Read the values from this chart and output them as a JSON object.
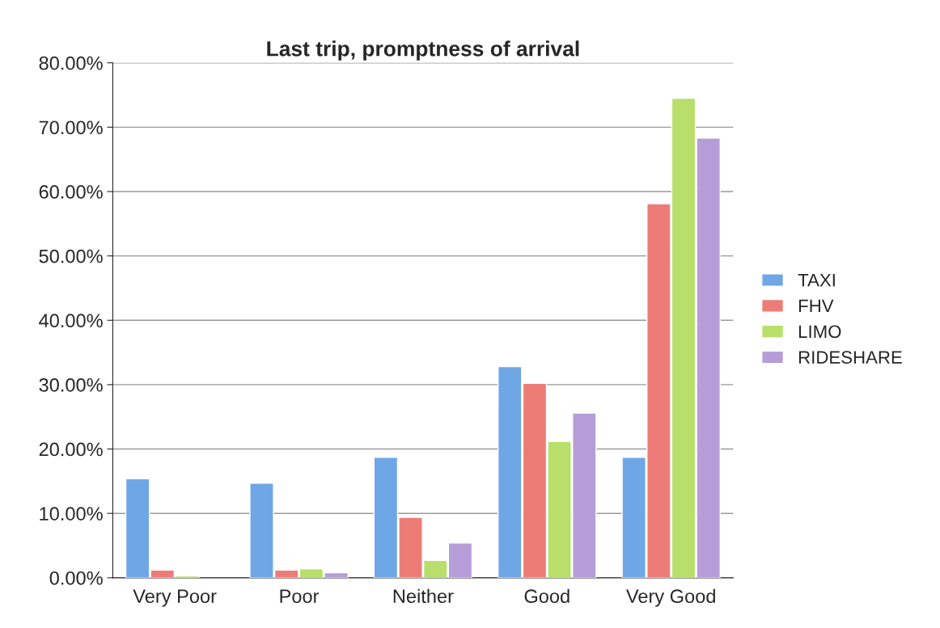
{
  "chart_data": {
    "type": "bar",
    "title": "Last trip, promptness of arrival",
    "categories": [
      "Very Poor",
      "Poor",
      "Neither",
      "Good",
      "Very Good"
    ],
    "series": [
      {
        "name": "TAXI",
        "color": "#6fa6e6",
        "values": [
          15.4,
          14.7,
          18.7,
          32.8,
          18.7
        ]
      },
      {
        "name": "FHV",
        "color": "#ee7c76",
        "values": [
          1.2,
          1.2,
          9.4,
          30.2,
          58.1
        ]
      },
      {
        "name": "LIMO",
        "color": "#b7df6a",
        "values": [
          0.3,
          1.4,
          2.7,
          21.2,
          74.5
        ]
      },
      {
        "name": "RIDESHARE",
        "color": "#b59ed8",
        "values": [
          null,
          0.8,
          5.4,
          25.6,
          68.3
        ]
      }
    ],
    "ylim": [
      0,
      80
    ],
    "yticks": [
      {
        "value": 0,
        "label": "0.00%"
      },
      {
        "value": 10,
        "label": "10.00%"
      },
      {
        "value": 20,
        "label": "20.00%"
      },
      {
        "value": 30,
        "label": "30.00%"
      },
      {
        "value": 40,
        "label": "40.00%"
      },
      {
        "value": 50,
        "label": "50.00%"
      },
      {
        "value": 60,
        "label": "60.00%"
      },
      {
        "value": 70,
        "label": "70.00%"
      },
      {
        "value": 80,
        "label": "80.00%"
      }
    ],
    "grid": "y",
    "legend": "right"
  }
}
